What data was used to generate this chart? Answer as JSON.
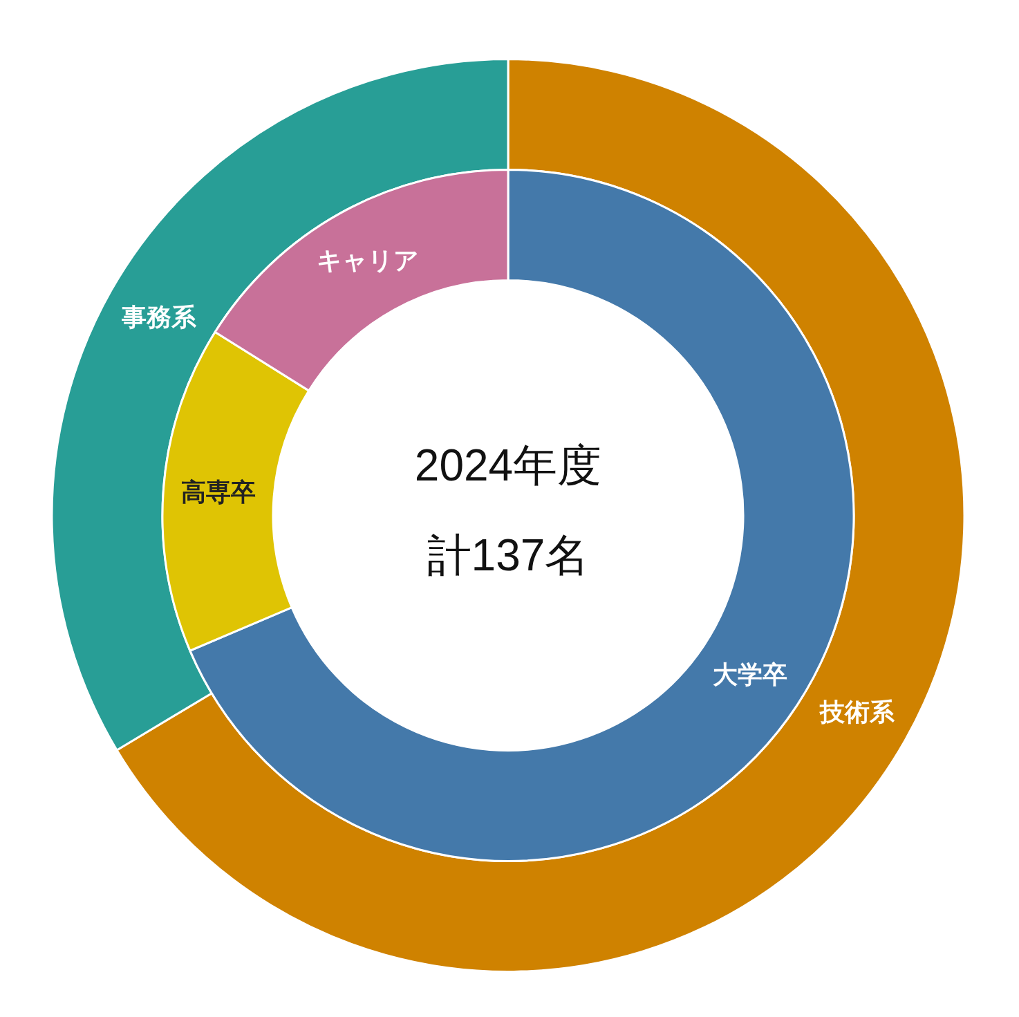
{
  "chart_data": [
    {
      "type": "donut",
      "categories": [
        "技術系",
        "事務系"
      ],
      "values": [
        66.4,
        33.6
      ],
      "colors": [
        "#cf8200",
        "#289e96"
      ]
    },
    {
      "type": "donut",
      "title": "2024年度",
      "subtitle": "計137名",
      "categories": [
        "大学卒",
        "高専卒",
        "キャリア"
      ],
      "values": [
        68.6,
        15.3,
        16.1
      ],
      "colors": [
        "#4479aa",
        "#dfc404",
        "#c87199"
      ]
    }
  ]
}
